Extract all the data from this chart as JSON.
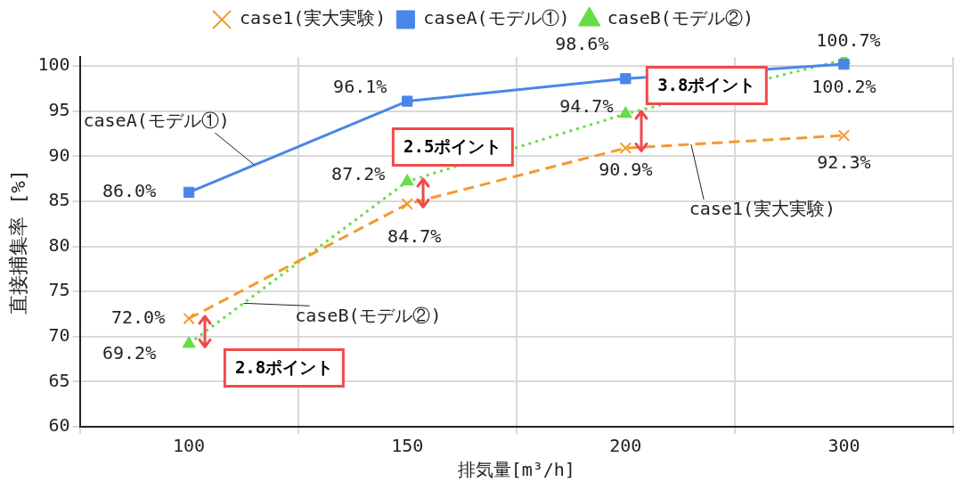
{
  "chart_data": {
    "type": "line",
    "xlabel": "排気量[m³/h]",
    "ylabel": "直接捕集率 [%]",
    "categories": [
      "100",
      "150",
      "200",
      "300"
    ],
    "series": [
      {
        "name": "case1(実大実験)",
        "color": "#f39a2b",
        "marker": "cross",
        "line_style": "dashed",
        "values": [
          72.0,
          84.7,
          90.9,
          92.3
        ],
        "value_labels": [
          "72.0%",
          "84.7%",
          "90.9%",
          "92.3%"
        ]
      },
      {
        "name": "caseA(モデル①)",
        "color": "#4a86e8",
        "marker": "square",
        "line_style": "solid",
        "values": [
          86.0,
          96.1,
          98.6,
          100.2
        ],
        "value_labels": [
          "86.0%",
          "96.1%",
          "98.6%",
          "100.2%"
        ]
      },
      {
        "name": "caseB(モデル②)",
        "color": "#66dd44",
        "marker": "triangle",
        "line_style": "dotted",
        "values": [
          69.2,
          87.2,
          94.7,
          100.7
        ],
        "value_labels": [
          "69.2%",
          "87.2%",
          "94.7%",
          "100.7%"
        ]
      }
    ],
    "ylim": [
      60,
      101
    ],
    "yticks": [
      60,
      65,
      70,
      75,
      80,
      85,
      90,
      95,
      100
    ],
    "grid": true,
    "legend": "top",
    "annotations": [
      "2.8ポイント",
      "2.5ポイント",
      "3.8ポイント"
    ]
  }
}
